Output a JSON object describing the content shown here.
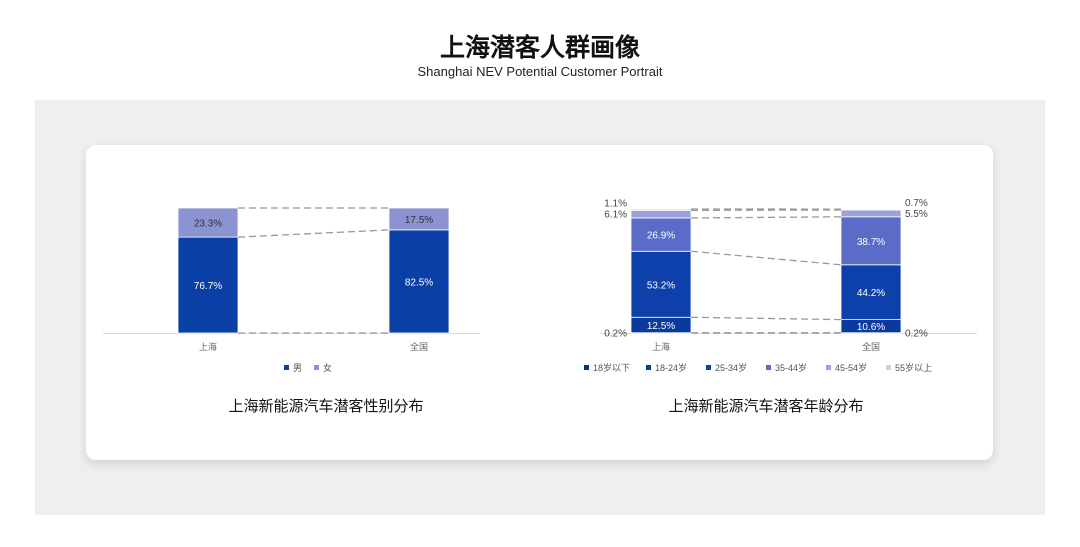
{
  "header": {
    "title": "上海潜客人群画像",
    "subtitle": "Shanghai NEV Potential Customer Portrait"
  },
  "chart_data": [
    {
      "type": "bar",
      "stacked": true,
      "title": "上海新能源汽车潜客性别分布",
      "categories": [
        "上海",
        "全国"
      ],
      "ylim": [
        0,
        100
      ],
      "legend": "bottom",
      "series": [
        {
          "name": "男",
          "values": [
            76.7,
            82.5
          ],
          "color": "#0a3fa6",
          "label_color": "#ffffff"
        },
        {
          "name": "女",
          "values": [
            23.3,
            17.5
          ],
          "color": "#8b93d2",
          "label_color": "#333333"
        }
      ]
    },
    {
      "type": "bar",
      "stacked": true,
      "title": "上海新能源汽车潜客年龄分布",
      "categories": [
        "上海",
        "全国"
      ],
      "ylim": [
        0,
        100
      ],
      "legend": "bottom",
      "series": [
        {
          "name": "18岁以下",
          "values": [
            0.2,
            0.2
          ],
          "color": "#07318f",
          "label_color": "#444444"
        },
        {
          "name": "18-24岁",
          "values": [
            12.5,
            10.6
          ],
          "color": "#0b3a9e",
          "label_color": "#ffffff"
        },
        {
          "name": "25-34岁",
          "values": [
            53.2,
            44.2
          ],
          "color": "#0d40aa",
          "label_color": "#ffffff"
        },
        {
          "name": "35-44岁",
          "values": [
            26.9,
            38.7
          ],
          "color": "#5a6cc8",
          "label_color": "#ffffff"
        },
        {
          "name": "45-54岁",
          "values": [
            6.1,
            5.5
          ],
          "color": "#9aa2da",
          "label_color": "#444444"
        },
        {
          "name": "55岁以上",
          "values": [
            1.1,
            0.7
          ],
          "color": "#cdd0ea",
          "label_color": "#444444"
        }
      ]
    }
  ]
}
